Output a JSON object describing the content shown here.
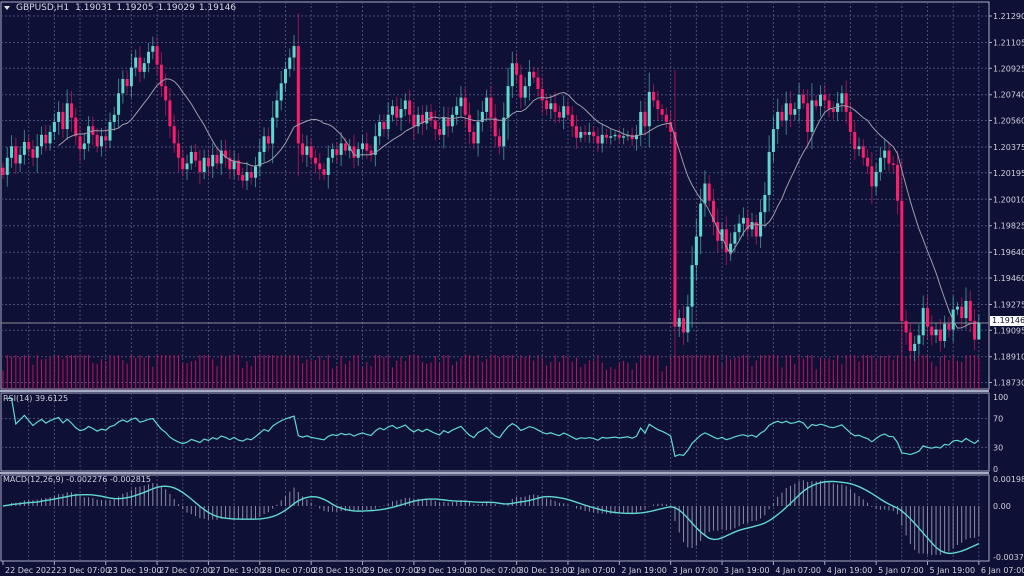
{
  "header": {
    "symbol": "GBPUSD,H1",
    "open": "1.19031",
    "high": "1.19205",
    "low": "1.19029",
    "close": "1.19146"
  },
  "current_price_label": "1.19146",
  "rsi_label": "RSI(14) 39.6125",
  "macd_label": "MACD(12,26,9) -0.002276 -0.002815",
  "colors": {
    "background": "#0f1036",
    "bull": "#5fd8cf",
    "bear": "#ff1c6c",
    "ma": "#9c9cab",
    "grid": "#4a4d7a",
    "border": "#a8abc4",
    "volume": "#c2125a",
    "indicator": "#5fd8cf",
    "histogram": "#8a8ba6"
  },
  "chart_data": {
    "type": "candlestick",
    "title": "GBPUSD,H1",
    "ylim": [
      1.1865,
      1.2135
    ],
    "yticks": [
      "1.21290",
      "1.21105",
      "1.20925",
      "1.20740",
      "1.20560",
      "1.20375",
      "1.20195",
      "1.20010",
      "1.19825",
      "1.19640",
      "1.19460",
      "1.19275",
      "1.19095",
      "1.18910",
      "1.18730"
    ],
    "xticks": [
      "22 Dec 2022",
      "23 Dec 07:00",
      "23 Dec 19:00",
      "27 Dec 07:00",
      "27 Dec 19:00",
      "28 Dec 07:00",
      "28 Dec 19:00",
      "29 Dec 07:00",
      "29 Dec 19:00",
      "30 Dec 07:00",
      "30 Dec 19:00",
      "2 Jan 07:00",
      "2 Jan 19:00",
      "3 Jan 07:00",
      "3 Jan 19:00",
      "4 Jan 07:00",
      "4 Jan 19:00",
      "5 Jan 07:00",
      "5 Jan 19:00",
      "6 Jan 07:00"
    ],
    "bars_per_xtick": 12,
    "ma_period": 14,
    "closes": [
      1.2018,
      1.203,
      1.2038,
      1.2026,
      1.2032,
      1.2041,
      1.2036,
      1.203,
      1.2038,
      1.2046,
      1.204,
      1.2048,
      1.2055,
      1.2062,
      1.205,
      1.2068,
      1.2058,
      1.2045,
      1.2036,
      1.204,
      1.2052,
      1.2046,
      1.2038,
      1.2045,
      1.2042,
      1.2055,
      1.206,
      1.2075,
      1.2085,
      1.208,
      1.2093,
      1.21,
      1.209,
      1.2096,
      1.2104,
      1.2108,
      1.2095,
      1.208,
      1.207,
      1.2052,
      1.204,
      1.203,
      1.2022,
      1.2026,
      1.2034,
      1.2028,
      1.202,
      1.203,
      1.2024,
      1.2032,
      1.2026,
      1.2035,
      1.203,
      1.2022,
      1.2028,
      1.2018,
      1.2014,
      1.202,
      1.2016,
      1.2024,
      1.2034,
      1.2045,
      1.204,
      1.2058,
      1.207,
      1.2082,
      1.2092,
      1.21,
      1.2108,
      1.204,
      1.2032,
      1.2038,
      1.203,
      1.2026,
      1.2022,
      1.2018,
      1.203,
      1.2036,
      1.2032,
      1.204,
      1.2035,
      1.2038,
      1.203,
      1.2036,
      1.204,
      1.2035,
      1.2032,
      1.2045,
      1.2055,
      1.205,
      1.206,
      1.2066,
      1.2058,
      1.2064,
      1.207,
      1.206,
      1.2052,
      1.206,
      1.2054,
      1.2062,
      1.2056,
      1.205,
      1.2046,
      1.2058,
      1.2052,
      1.206,
      1.2066,
      1.2072,
      1.206,
      1.2048,
      1.204,
      1.2055,
      1.2062,
      1.2072,
      1.2058,
      1.2045,
      1.2038,
      1.2058,
      1.208,
      1.2096,
      1.2088,
      1.2072,
      1.208,
      1.209,
      1.2086,
      1.2078,
      1.207,
      1.2064,
      1.2068,
      1.2062,
      1.2058,
      1.2066,
      1.206,
      1.2052,
      1.2044,
      1.2048,
      1.2046,
      1.2048,
      1.2045,
      1.204,
      1.2046,
      1.2044,
      1.2045,
      1.2046,
      1.2044,
      1.2045,
      1.2046,
      1.2043,
      1.2046,
      1.2062,
      1.2052,
      1.2076,
      1.207,
      1.2064,
      1.206,
      1.2055,
      1.2048,
      1.1912,
      1.1918,
      1.1908,
      1.1926,
      1.1955,
      1.1975,
      1.1998,
      1.2012,
      1.2,
      1.1985,
      1.1972,
      1.198,
      1.1964,
      1.197,
      1.1978,
      1.1984,
      1.1988,
      1.198,
      1.1985,
      1.1975,
      1.1992,
      1.2004,
      1.2034,
      1.205,
      1.2062,
      1.2056,
      1.2068,
      1.206,
      1.2064,
      1.2074,
      1.2068,
      1.2048,
      1.207,
      1.2066,
      1.2074,
      1.207,
      1.2064,
      1.2062,
      1.2068,
      1.2075,
      1.2062,
      1.2048,
      1.2036,
      1.2038,
      1.203,
      1.2024,
      1.201,
      1.202,
      1.203,
      1.2035,
      1.2026,
      1.2025,
      1.2,
      1.1916,
      1.1908,
      1.1895,
      1.19,
      1.1906,
      1.1925,
      1.1912,
      1.1906,
      1.191,
      1.1902,
      1.1914,
      1.191,
      1.1924,
      1.1926,
      1.1918,
      1.193,
      1.1916,
      1.1903
    ],
    "last_bar": {
      "open": 1.19031,
      "high": 1.19205,
      "low": 1.19029,
      "close": 1.19146
    },
    "rsi": {
      "period": 14,
      "ylim": [
        0,
        100
      ],
      "levels": [
        70,
        30
      ],
      "tick_labels": [
        "100",
        "70",
        "30",
        "0"
      ],
      "value": 39.6125
    },
    "macd": {
      "fast": 12,
      "slow": 26,
      "signal": 9,
      "ylim": [
        -0.003734,
        0.001985
      ],
      "tick_labels": [
        "0.001985",
        "0.00",
        "-0.003734"
      ],
      "main": -0.002276,
      "signal_value": -0.002815
    }
  }
}
